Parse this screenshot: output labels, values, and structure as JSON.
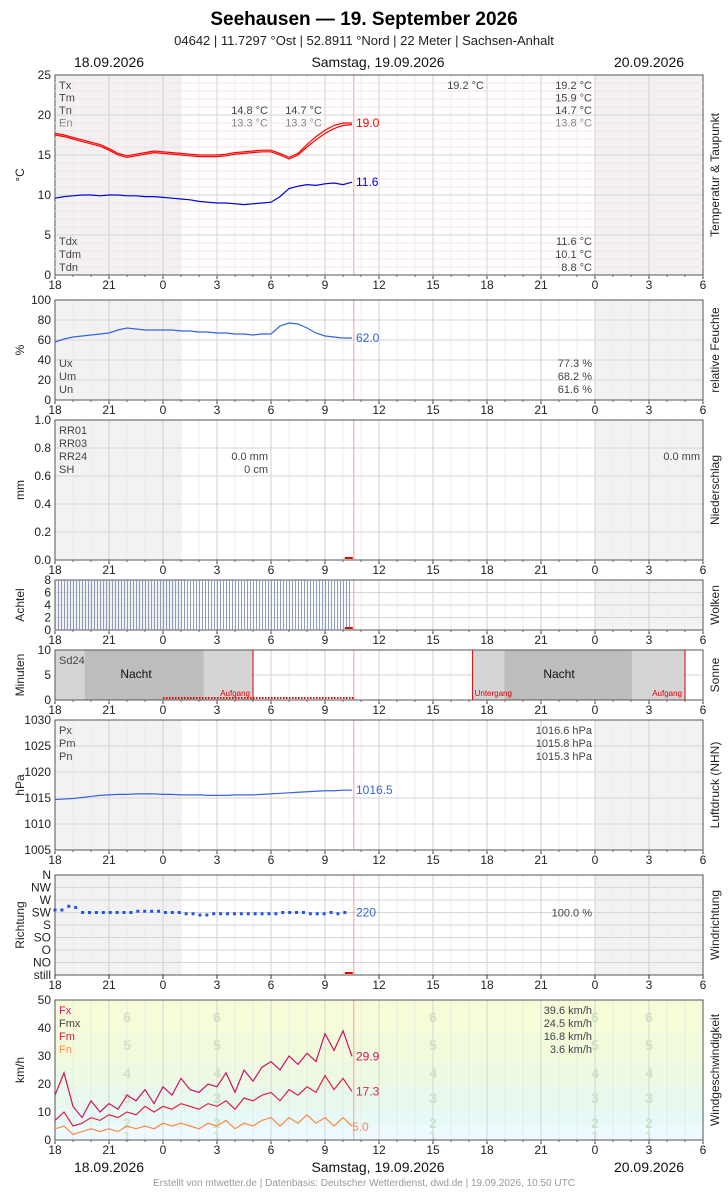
{
  "header": {
    "title": "Seehausen  —  19. September 2026",
    "subtitle": "04642  |  11.7297 °Ost  |  52.8911 °Nord  |  22 Meter  |  Sachsen-Anhalt",
    "date_left": "18.09.2026",
    "date_center": "Samstag, 19.09.2026",
    "date_right": "20.09.2026"
  },
  "footer": {
    "credit": "Erstellt von mtwetter.de | Datenbasis: Deutscher Wetterdienst, dwd.de | 19.09.2026, 10:50 UTC"
  },
  "x_ticks": [
    "18",
    "21",
    "0",
    "3",
    "6",
    "9",
    "12",
    "15",
    "18",
    "21",
    "0",
    "3",
    "6"
  ],
  "chart_data": [
    {
      "type": "line",
      "id": "temp",
      "ylabel": "°C",
      "side_label": "Temperatur & Taupunkt",
      "ylim": [
        0,
        25
      ],
      "yticks": [
        "0",
        "5",
        "10",
        "15",
        "20",
        "25"
      ],
      "stats_top_labels": [
        "Tx",
        "Tm",
        "Tn",
        "En"
      ],
      "stats_top_day1": {
        "Tn": "14.8 °C",
        "En": "13.3 °C"
      },
      "stats_top_day1b": {
        "Tn": "14.7 °C",
        "En": "13.3 °C"
      },
      "stats_top_mid": {
        "Tx": "19.2 °C"
      },
      "stats_top_right": {
        "Tx": "19.2 °C",
        "Tm": "15.9 °C",
        "Tn": "14.7 °C",
        "En": "13.8 °C"
      },
      "stats_bottom_labels": [
        "Tdx",
        "Tdm",
        "Tdn"
      ],
      "stats_bottom_right": {
        "Tdx": "11.6 °C",
        "Tdm": "10.1 °C",
        "Tdn": "8.8 °C"
      },
      "series": [
        {
          "key": "temp",
          "color": "#ff0000",
          "last_label": "19.0",
          "x": [
            -6,
            -5.5,
            -5,
            -4.5,
            -4,
            -3.5,
            -3,
            -2.5,
            -2,
            -1.5,
            -1,
            -0.5,
            0,
            0.5,
            1,
            1.5,
            2,
            2.5,
            3,
            3.5,
            4,
            4.5,
            5,
            5.5,
            6,
            6.5,
            7,
            7.5,
            8,
            8.5,
            9,
            9.5,
            10,
            10.5
          ],
          "y": [
            17.7,
            17.5,
            17.2,
            16.9,
            16.6,
            16.3,
            15.8,
            15.2,
            14.9,
            15.1,
            15.3,
            15.5,
            15.4,
            15.3,
            15.2,
            15.1,
            15.0,
            15.0,
            15.0,
            15.1,
            15.3,
            15.4,
            15.5,
            15.6,
            15.6,
            15.2,
            14.7,
            15.2,
            16.3,
            17.3,
            18.1,
            18.7,
            19.0,
            19.0
          ]
        },
        {
          "key": "temp_b",
          "color": "#ff0000",
          "last_label": "",
          "x": [
            -6,
            -5.5,
            -5,
            -4.5,
            -4,
            -3.5,
            -3,
            -2.5,
            -2,
            -1.5,
            -1,
            -0.5,
            0,
            0.5,
            1,
            1.5,
            2,
            2.5,
            3,
            3.5,
            4,
            4.5,
            5,
            5.5,
            6,
            6.5,
            7,
            7.5,
            8,
            8.5,
            9,
            9.5,
            10,
            10.5
          ],
          "y": [
            17.5,
            17.3,
            17.0,
            16.7,
            16.4,
            16.1,
            15.6,
            15.0,
            14.7,
            14.9,
            15.1,
            15.3,
            15.2,
            15.1,
            15.0,
            14.9,
            14.8,
            14.8,
            14.8,
            14.9,
            15.1,
            15.2,
            15.3,
            15.4,
            15.4,
            15.0,
            14.5,
            15.0,
            16.0,
            16.9,
            17.7,
            18.3,
            18.7,
            18.8
          ]
        },
        {
          "key": "dew",
          "color": "#0000dd",
          "last_label": "11.6",
          "x": [
            -6,
            -5.5,
            -5,
            -4.5,
            -4,
            -3.5,
            -3,
            -2.5,
            -2,
            -1.5,
            -1,
            -0.5,
            0,
            0.5,
            1,
            1.5,
            2,
            2.5,
            3,
            3.5,
            4,
            4.5,
            5,
            5.5,
            6,
            6.5,
            7,
            7.5,
            8,
            8.5,
            9,
            9.5,
            10,
            10.5
          ],
          "y": [
            9.6,
            9.8,
            9.9,
            10.0,
            10.0,
            9.9,
            10.0,
            10.0,
            9.9,
            9.9,
            9.8,
            9.8,
            9.7,
            9.6,
            9.5,
            9.4,
            9.2,
            9.1,
            9.0,
            9.0,
            8.9,
            8.8,
            8.9,
            9.0,
            9.1,
            9.8,
            10.8,
            11.1,
            11.3,
            11.2,
            11.4,
            11.5,
            11.3,
            11.6
          ]
        }
      ]
    },
    {
      "type": "line",
      "id": "humidity",
      "ylabel": "%",
      "side_label": "relative Feuchte",
      "ylim": [
        0,
        100
      ],
      "yticks": [
        "0",
        "20",
        "40",
        "60",
        "80",
        "100"
      ],
      "stats_bottom_labels": [
        "Ux",
        "Um",
        "Un"
      ],
      "stats_bottom_right": {
        "Ux": "77.3 %",
        "Um": "68.2 %",
        "Un": "61.6 %"
      },
      "series": [
        {
          "key": "rh",
          "color": "#3366dd",
          "last_label": "62.0",
          "x": [
            -6,
            -5.5,
            -5,
            -4.5,
            -4,
            -3.5,
            -3,
            -2.5,
            -2,
            -1.5,
            -1,
            -0.5,
            0,
            0.5,
            1,
            1.5,
            2,
            2.5,
            3,
            3.5,
            4,
            4.5,
            5,
            5.5,
            6,
            6.5,
            7,
            7.5,
            8,
            8.5,
            9,
            9.5,
            10,
            10.5
          ],
          "y": [
            58,
            61,
            63,
            64,
            65,
            66,
            67,
            70,
            72,
            71,
            70,
            70,
            70,
            70,
            69,
            69,
            68,
            68,
            67,
            67,
            66,
            66,
            65,
            66,
            66,
            74,
            77,
            76,
            72,
            67,
            64,
            63,
            62,
            62
          ]
        }
      ]
    },
    {
      "type": "bar",
      "id": "precip",
      "ylabel": "mm",
      "side_label": "Niederschlag",
      "ylim": [
        0,
        1.0
      ],
      "yticks": [
        "0.0",
        "0.2",
        "0.4",
        "0.6",
        "0.8",
        "1.0"
      ],
      "stats_labels": [
        "RR01",
        "RR03",
        "RR24",
        "SH"
      ],
      "stats_day1": {
        "RR24": "0.0 mm",
        "SH": "0 cm"
      },
      "stats_right": {
        "RR24": "0.0 mm"
      },
      "values": []
    },
    {
      "type": "bar",
      "id": "clouds",
      "ylabel": "Achtel",
      "side_label": "Wolken",
      "ylim": [
        0,
        8
      ],
      "yticks": [
        "0",
        "2",
        "4",
        "6",
        "8"
      ],
      "x_start": -6,
      "x_step": 0.1667,
      "values_count": 100,
      "value_default": 8
    },
    {
      "type": "area",
      "id": "sun",
      "ylabel": "Minuten",
      "side_label": "Sonne",
      "ylim": [
        0,
        10
      ],
      "yticks": [
        "0",
        "5",
        "10"
      ],
      "stat_label": "Sd24",
      "night_label": "Nacht",
      "sunrise_label": "Aufgang",
      "sunset_label": "Untergang",
      "nights": [
        {
          "from": -6,
          "to": 5,
          "label_x": -1.5
        },
        {
          "from": 17.2,
          "to": 29,
          "label_x": 22
        }
      ],
      "sunrise": [
        5,
        29
      ],
      "sunset": [
        17.2
      ]
    },
    {
      "type": "line",
      "id": "pressure",
      "ylabel": "hPa",
      "side_label": "Luftdruck (NHN)",
      "ylim": [
        1005,
        1030
      ],
      "yticks": [
        "1005",
        "1010",
        "1015",
        "1020",
        "1025",
        "1030"
      ],
      "stats_top_labels": [
        "Px",
        "Pm",
        "Pn"
      ],
      "stats_top_right": {
        "Px": "1016.6 hPa",
        "Pm": "1015.8 hPa",
        "Pn": "1015.3 hPa"
      },
      "series": [
        {
          "key": "p",
          "color": "#3366dd",
          "last_label": "1016.5",
          "x": [
            -6,
            -5.5,
            -5,
            -4.5,
            -4,
            -3.5,
            -3,
            -2.5,
            -2,
            -1.5,
            -1,
            -0.5,
            0,
            0.5,
            1,
            1.5,
            2,
            2.5,
            3,
            3.5,
            4,
            4.5,
            5,
            5.5,
            6,
            6.5,
            7,
            7.5,
            8,
            8.5,
            9,
            9.5,
            10,
            10.5
          ],
          "y": [
            1014.7,
            1014.8,
            1014.9,
            1015.1,
            1015.3,
            1015.5,
            1015.6,
            1015.7,
            1015.7,
            1015.8,
            1015.8,
            1015.8,
            1015.7,
            1015.7,
            1015.6,
            1015.6,
            1015.6,
            1015.5,
            1015.5,
            1015.5,
            1015.6,
            1015.6,
            1015.6,
            1015.7,
            1015.8,
            1015.9,
            1016.0,
            1016.1,
            1016.2,
            1016.3,
            1016.4,
            1016.4,
            1016.5,
            1016.5
          ]
        }
      ]
    },
    {
      "type": "scatter",
      "id": "winddir",
      "ylabel": "Richtung",
      "side_label": "Windrichtung",
      "categories": [
        "still",
        "NO",
        "O",
        "SO",
        "S",
        "SW",
        "W",
        "NW",
        "N"
      ],
      "last_label": "220",
      "stat_right": "100.0 %",
      "x_start": -6,
      "x_step": 0.1667,
      "values": [
        5.2,
        5.2,
        5.5,
        5.4,
        5.0,
        5.0,
        5.0,
        5.0,
        5.0,
        5.0,
        5.0,
        5.0,
        5.1,
        5.1,
        5.1,
        5.1,
        5.0,
        5.0,
        5.0,
        4.9,
        4.9,
        4.8,
        4.8,
        4.9,
        4.9,
        4.9,
        4.9,
        4.9,
        4.9,
        4.9,
        4.9,
        4.9,
        4.9,
        5.0,
        5.0,
        5.0,
        5.0,
        4.9,
        4.9,
        4.9,
        5.0,
        4.9,
        5.0,
        5.0,
        4.9,
        4.9,
        5.0,
        5.0,
        5.0,
        4.9,
        5.0,
        5.0,
        5.0,
        5.0,
        5.1,
        5.0,
        5.0,
        4.9,
        4.9,
        4.9,
        5.0,
        5.0,
        5.0,
        5.0,
        5.0,
        5.1,
        5.1,
        5.0,
        5.1,
        5.3,
        5.0,
        5.1,
        5.0
      ]
    },
    {
      "type": "line",
      "id": "windspeed",
      "ylabel": "km/h",
      "side_label": "Windgeschwindigkeit",
      "ylim": [
        0,
        50
      ],
      "yticks": [
        "0",
        "10",
        "20",
        "30",
        "40",
        "50"
      ],
      "stats_top_labels": [
        "Fx",
        "Fmx",
        "Fm",
        "Fn"
      ],
      "stats_top_right": {
        "Fx": "39.6 km/h",
        "Fmx": "24.5 km/h",
        "Fm": "16.8 km/h",
        "Fn": "3.6 km/h"
      },
      "beaufort_bands": [
        {
          "label": "1",
          "y": 1.5
        },
        {
          "label": "2",
          "y": 6
        },
        {
          "label": "3",
          "y": 15
        },
        {
          "label": "4",
          "y": 24
        },
        {
          "label": "5",
          "y": 34
        },
        {
          "label": "6",
          "y": 44
        }
      ],
      "series": [
        {
          "key": "gust",
          "color": "#cc1166",
          "last_label": "29.9",
          "x": [
            -6,
            -5.5,
            -5,
            -4.5,
            -4,
            -3.5,
            -3,
            -2.5,
            -2,
            -1.5,
            -1,
            -0.5,
            0,
            0.5,
            1,
            1.5,
            2,
            2.5,
            3,
            3.5,
            4,
            4.5,
            5,
            5.5,
            6,
            6.5,
            7,
            7.5,
            8,
            8.5,
            9,
            9.5,
            10,
            10.5
          ],
          "y": [
            16,
            24,
            12,
            8,
            14,
            10,
            13,
            11,
            16,
            14,
            18,
            13,
            19,
            16,
            22,
            18,
            17,
            20,
            19,
            24,
            17,
            25,
            21,
            26,
            28,
            25,
            30,
            27,
            31,
            28,
            38,
            32,
            39,
            29.9
          ]
        },
        {
          "key": "mean",
          "color": "#dd2244",
          "last_label": "17.3",
          "x": [
            -6,
            -5.5,
            -5,
            -4.5,
            -4,
            -3.5,
            -3,
            -2.5,
            -2,
            -1.5,
            -1,
            -0.5,
            0,
            0.5,
            1,
            1.5,
            2,
            2.5,
            3,
            3.5,
            4,
            4.5,
            5,
            5.5,
            6,
            6.5,
            7,
            7.5,
            8,
            8.5,
            9,
            9.5,
            10,
            10.5
          ],
          "y": [
            7,
            10,
            5,
            6,
            8,
            7,
            9,
            8,
            10,
            9,
            12,
            10,
            12,
            11,
            13,
            12,
            11,
            13,
            12,
            14,
            11,
            15,
            14,
            16,
            17,
            14,
            18,
            16,
            19,
            17,
            23,
            18,
            22,
            17.3
          ]
        },
        {
          "key": "min",
          "color": "#ff8844",
          "last_label": "5.0",
          "x": [
            -6,
            -5.5,
            -5,
            -4.5,
            -4,
            -3.5,
            -3,
            -2.5,
            -2,
            -1.5,
            -1,
            -0.5,
            0,
            0.5,
            1,
            1.5,
            2,
            2.5,
            3,
            3.5,
            4,
            4.5,
            5,
            5.5,
            6,
            6.5,
            7,
            7.5,
            8,
            8.5,
            9,
            9.5,
            10,
            10.5
          ],
          "y": [
            4,
            5,
            2,
            3,
            4,
            3,
            4,
            3,
            5,
            4,
            5,
            4,
            6,
            5,
            6,
            5,
            4,
            6,
            5,
            7,
            4,
            6,
            5,
            7,
            8,
            5,
            8,
            6,
            9,
            6,
            8,
            5,
            8,
            5.0
          ]
        }
      ]
    }
  ]
}
